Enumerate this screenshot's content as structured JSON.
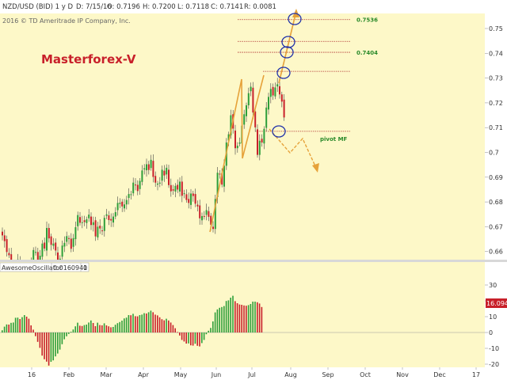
{
  "header": {
    "symbol": "NZD/USD (BID) 1 y D",
    "date": "D: 7/15/16",
    "open": "O: 0.7196",
    "high": "H: 0.7200",
    "low": "L: 0.7118",
    "close": "C: 0.7141",
    "range": "R: 0.0081",
    "copyright": "2016 © TD Ameritrade IP Company, Inc."
  },
  "watermark": "Masterforex-V",
  "oscillator": {
    "name": "AwesomeOscillator",
    "value": "0.0160941",
    "param": "0",
    "current_tag": "16.0942"
  },
  "colors": {
    "background": "#fdf8c8",
    "up": "#2e9e3a",
    "down": "#c8202a",
    "wick": "#444444",
    "annotation": "#e6a23a",
    "level_line": "#b03030",
    "circle": "#2233aa",
    "green_label": "#2a8a2a",
    "oscillator_tag": "#c8202a"
  },
  "chart_data": [
    {
      "type": "candlestick",
      "title": "NZD/USD (BID) 1 y D",
      "x_tick_labels": [
        "16",
        "Feb",
        "Mar",
        "Apr",
        "May",
        "Jun",
        "Jul",
        "Aug",
        "Sep",
        "Oct",
        "Nov",
        "Dec",
        "17"
      ],
      "y_tick_labels": [
        "0.75",
        "0.74",
        "0.73",
        "0.72",
        "0.71",
        "0.7",
        "0.69",
        "0.68",
        "0.67",
        "0.66"
      ],
      "ylim": [
        0.657,
        0.7575
      ],
      "close_series": [
        0.6665,
        0.6642,
        0.6598,
        0.6585,
        0.6532,
        0.6485,
        0.6538,
        0.6568,
        0.6531,
        0.6452,
        0.6468,
        0.6498,
        0.6518,
        0.6558,
        0.6606,
        0.6598,
        0.6541,
        0.6583,
        0.6632,
        0.6612,
        0.6695,
        0.6653,
        0.6627,
        0.6632,
        0.6604,
        0.6553,
        0.6571,
        0.6624,
        0.6635,
        0.6662,
        0.6652,
        0.6611,
        0.6654,
        0.6698,
        0.6747,
        0.6716,
        0.6718,
        0.6719,
        0.673,
        0.6749,
        0.6707,
        0.6718,
        0.6661,
        0.67,
        0.6693,
        0.6683,
        0.6736,
        0.675,
        0.6727,
        0.6725,
        0.6741,
        0.6759,
        0.6796,
        0.6797,
        0.6782,
        0.679,
        0.6808,
        0.6832,
        0.6831,
        0.6878,
        0.6869,
        0.6844,
        0.6885,
        0.6927,
        0.6936,
        0.6952,
        0.6929,
        0.697,
        0.6901,
        0.6878,
        0.6874,
        0.6878,
        0.693,
        0.6907,
        0.6938,
        0.6868,
        0.6843,
        0.6846,
        0.6865,
        0.685,
        0.6882,
        0.6825,
        0.6835,
        0.6808,
        0.6796,
        0.6834,
        0.6824,
        0.6793,
        0.6782,
        0.6734,
        0.6743,
        0.674,
        0.6767,
        0.674,
        0.6708,
        0.6691,
        0.6812,
        0.6918,
        0.6912,
        0.687,
        0.6946,
        0.704,
        0.7073,
        0.715,
        0.7096,
        0.7017,
        0.7027,
        0.704,
        0.7108,
        0.7154,
        0.719,
        0.7239,
        0.7265,
        0.7161,
        0.7101,
        0.699,
        0.7047,
        0.704,
        0.7095,
        0.7181,
        0.7224,
        0.7256,
        0.723,
        0.7262,
        0.7275,
        0.7234,
        0.7205,
        0.7141
      ],
      "levels": [
        {
          "value": 0.7536,
          "label": "0.7536"
        },
        {
          "value": 0.7448,
          "label": ""
        },
        {
          "value": 0.7404,
          "label": "0.7404"
        },
        {
          "value": 0.7327,
          "label": ""
        },
        {
          "value": 0.7085,
          "label": "pivot MF"
        }
      ],
      "grid": false
    },
    {
      "type": "bar",
      "title": "AwesomeOscillator",
      "y_tick_labels": [
        "30",
        "20",
        "10",
        "0",
        "-10",
        "-20"
      ],
      "ylim": [
        -24,
        36
      ],
      "values": [
        1.4,
        3.7,
        5.1,
        5.0,
        6.1,
        6.3,
        9.3,
        9.4,
        8.5,
        9.7,
        11.0,
        10.0,
        8.7,
        4.5,
        1.8,
        -2.3,
        -5.9,
        -9.7,
        -14.6,
        -16.9,
        -18.4,
        -20.9,
        -18.5,
        -17.6,
        -15.1,
        -13.3,
        -10.8,
        -7.4,
        -4.3,
        -2.4,
        -0.9,
        0.5,
        1.9,
        3.9,
        6.2,
        4.3,
        4.1,
        4.7,
        5.0,
        6.3,
        7.6,
        6.0,
        4.0,
        6.2,
        4.7,
        4.5,
        5.8,
        4.5,
        3.9,
        3.3,
        3.5,
        4.9,
        5.9,
        6.6,
        7.5,
        8.9,
        9.4,
        11.0,
        10.9,
        11.8,
        10.3,
        10.2,
        11.0,
        11.3,
        12.2,
        12.0,
        12.8,
        13.8,
        12.8,
        11.3,
        10.8,
        9.6,
        8.4,
        7.7,
        8.7,
        7.6,
        6.3,
        4.7,
        2.7,
        0.3,
        -1.9,
        -4.7,
        -5.7,
        -7.0,
        -6.9,
        -8.1,
        -8.3,
        -7.1,
        -8.4,
        -8.8,
        -6.7,
        -4.7,
        -1.1,
        1.1,
        2.9,
        7.0,
        12.7,
        14.6,
        15.6,
        16.1,
        16.7,
        19.9,
        20.3,
        22.0,
        23.2,
        19.8,
        18.5,
        17.7,
        17.5,
        17.1,
        16.9,
        17.3,
        18.0,
        19.5,
        19.5,
        19.1,
        18.3,
        16.1
      ],
      "grid": false
    }
  ]
}
